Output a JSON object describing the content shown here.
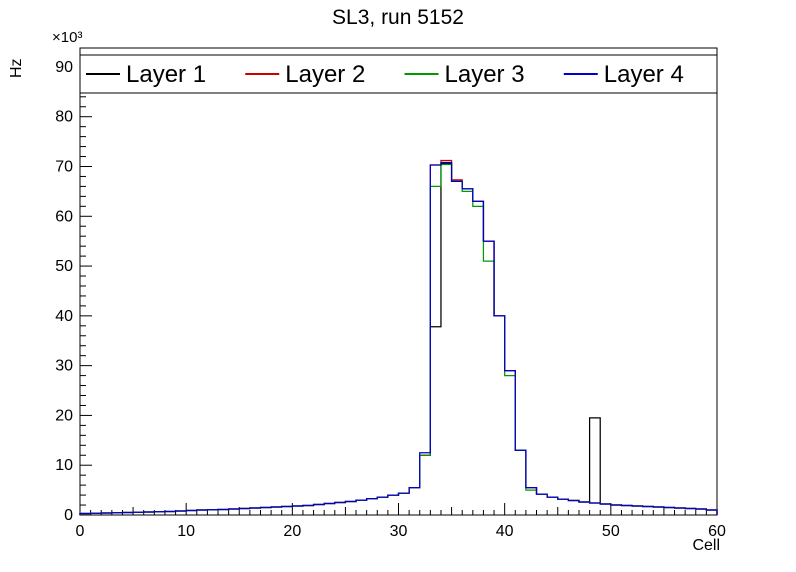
{
  "title": "SL3, run 5152",
  "axes": {
    "x_label": "Cell",
    "y_label": "Hz",
    "y_scale_label": "×10³",
    "xlim": [
      0,
      60
    ],
    "ylim": [
      0,
      93.8
    ],
    "x_ticks": [
      0,
      10,
      20,
      30,
      40,
      50,
      60
    ],
    "y_ticks": [
      0,
      10,
      20,
      30,
      40,
      50,
      60,
      70,
      80,
      90
    ],
    "x_minor_step": 1,
    "y_minor_step": 2,
    "grid": false
  },
  "legend": {
    "position": "top-inside-full-width",
    "entries": [
      {
        "label": "Layer 1",
        "color": "#000000"
      },
      {
        "label": "Layer 2",
        "color": "#cc0000"
      },
      {
        "label": "Layer 3",
        "color": "#009900"
      },
      {
        "label": "Layer 4",
        "color": "#0000cc"
      }
    ]
  },
  "chart_data": {
    "type": "histogram-step",
    "bin_width": 1,
    "x_range": [
      0,
      60
    ],
    "y_units": "×10³ Hz",
    "title": "SL3, run 5152",
    "xlabel": "Cell",
    "ylabel": "Hz",
    "series": [
      {
        "name": "Layer 1",
        "color": "#000000",
        "values": [
          0.3,
          0.35,
          0.4,
          0.45,
          0.5,
          0.55,
          0.6,
          0.65,
          0.7,
          0.8,
          0.9,
          1.0,
          1.05,
          1.1,
          1.2,
          1.3,
          1.4,
          1.5,
          1.6,
          1.7,
          1.8,
          1.9,
          2.1,
          2.3,
          2.5,
          2.7,
          3.0,
          3.3,
          3.6,
          4.0,
          4.4,
          5.5,
          12.0,
          37.8,
          70.6,
          67.0,
          65.5,
          63.0,
          55.0,
          40.0,
          29.0,
          13.0,
          5.5,
          4.2,
          3.6,
          3.2,
          2.9,
          2.6,
          19.5,
          2.2,
          2.0,
          1.9,
          1.8,
          1.7,
          1.6,
          1.5,
          1.4,
          1.3,
          1.2,
          1.0
        ]
      },
      {
        "name": "Layer 2",
        "color": "#cc0000",
        "values": [
          0.3,
          0.35,
          0.4,
          0.45,
          0.5,
          0.55,
          0.6,
          0.65,
          0.7,
          0.8,
          0.9,
          1.0,
          1.05,
          1.1,
          1.2,
          1.3,
          1.4,
          1.5,
          1.6,
          1.7,
          1.8,
          1.9,
          2.1,
          2.3,
          2.5,
          2.7,
          3.0,
          3.3,
          3.6,
          4.0,
          4.4,
          5.5,
          12.0,
          70.3,
          71.2,
          67.3,
          65.5,
          63.0,
          55.0,
          40.0,
          29.0,
          13.0,
          5.5,
          4.2,
          3.6,
          3.2,
          2.9,
          2.6,
          2.4,
          2.2,
          2.0,
          1.9,
          1.8,
          1.7,
          1.6,
          1.5,
          1.4,
          1.3,
          1.2,
          1.0
        ]
      },
      {
        "name": "Layer 3",
        "color": "#009900",
        "values": [
          0.3,
          0.35,
          0.4,
          0.45,
          0.5,
          0.55,
          0.6,
          0.65,
          0.7,
          0.8,
          0.9,
          1.0,
          1.05,
          1.1,
          1.2,
          1.3,
          1.4,
          1.5,
          1.6,
          1.7,
          1.8,
          1.9,
          2.1,
          2.3,
          2.5,
          2.7,
          3.0,
          3.3,
          3.6,
          4.0,
          4.4,
          5.5,
          12.0,
          66.0,
          70.4,
          67.0,
          65.0,
          62.0,
          51.0,
          40.0,
          28.0,
          13.0,
          5.0,
          4.2,
          3.6,
          3.2,
          2.9,
          2.6,
          2.4,
          2.2,
          2.0,
          1.9,
          1.8,
          1.7,
          1.6,
          1.5,
          1.4,
          1.3,
          1.2,
          1.0
        ]
      },
      {
        "name": "Layer 4",
        "color": "#0000cc",
        "values": [
          0.3,
          0.35,
          0.4,
          0.45,
          0.5,
          0.55,
          0.6,
          0.65,
          0.7,
          0.8,
          0.9,
          1.0,
          1.05,
          1.1,
          1.2,
          1.3,
          1.4,
          1.5,
          1.6,
          1.7,
          1.8,
          1.9,
          2.1,
          2.3,
          2.5,
          2.7,
          3.0,
          3.3,
          3.6,
          4.0,
          4.4,
          5.5,
          12.5,
          70.3,
          70.8,
          67.0,
          65.5,
          63.0,
          55.0,
          40.0,
          29.0,
          13.0,
          5.5,
          4.2,
          3.6,
          3.2,
          2.9,
          2.6,
          2.4,
          2.2,
          2.0,
          1.9,
          1.8,
          1.7,
          1.6,
          1.5,
          1.4,
          1.3,
          1.2,
          1.0
        ]
      }
    ]
  }
}
